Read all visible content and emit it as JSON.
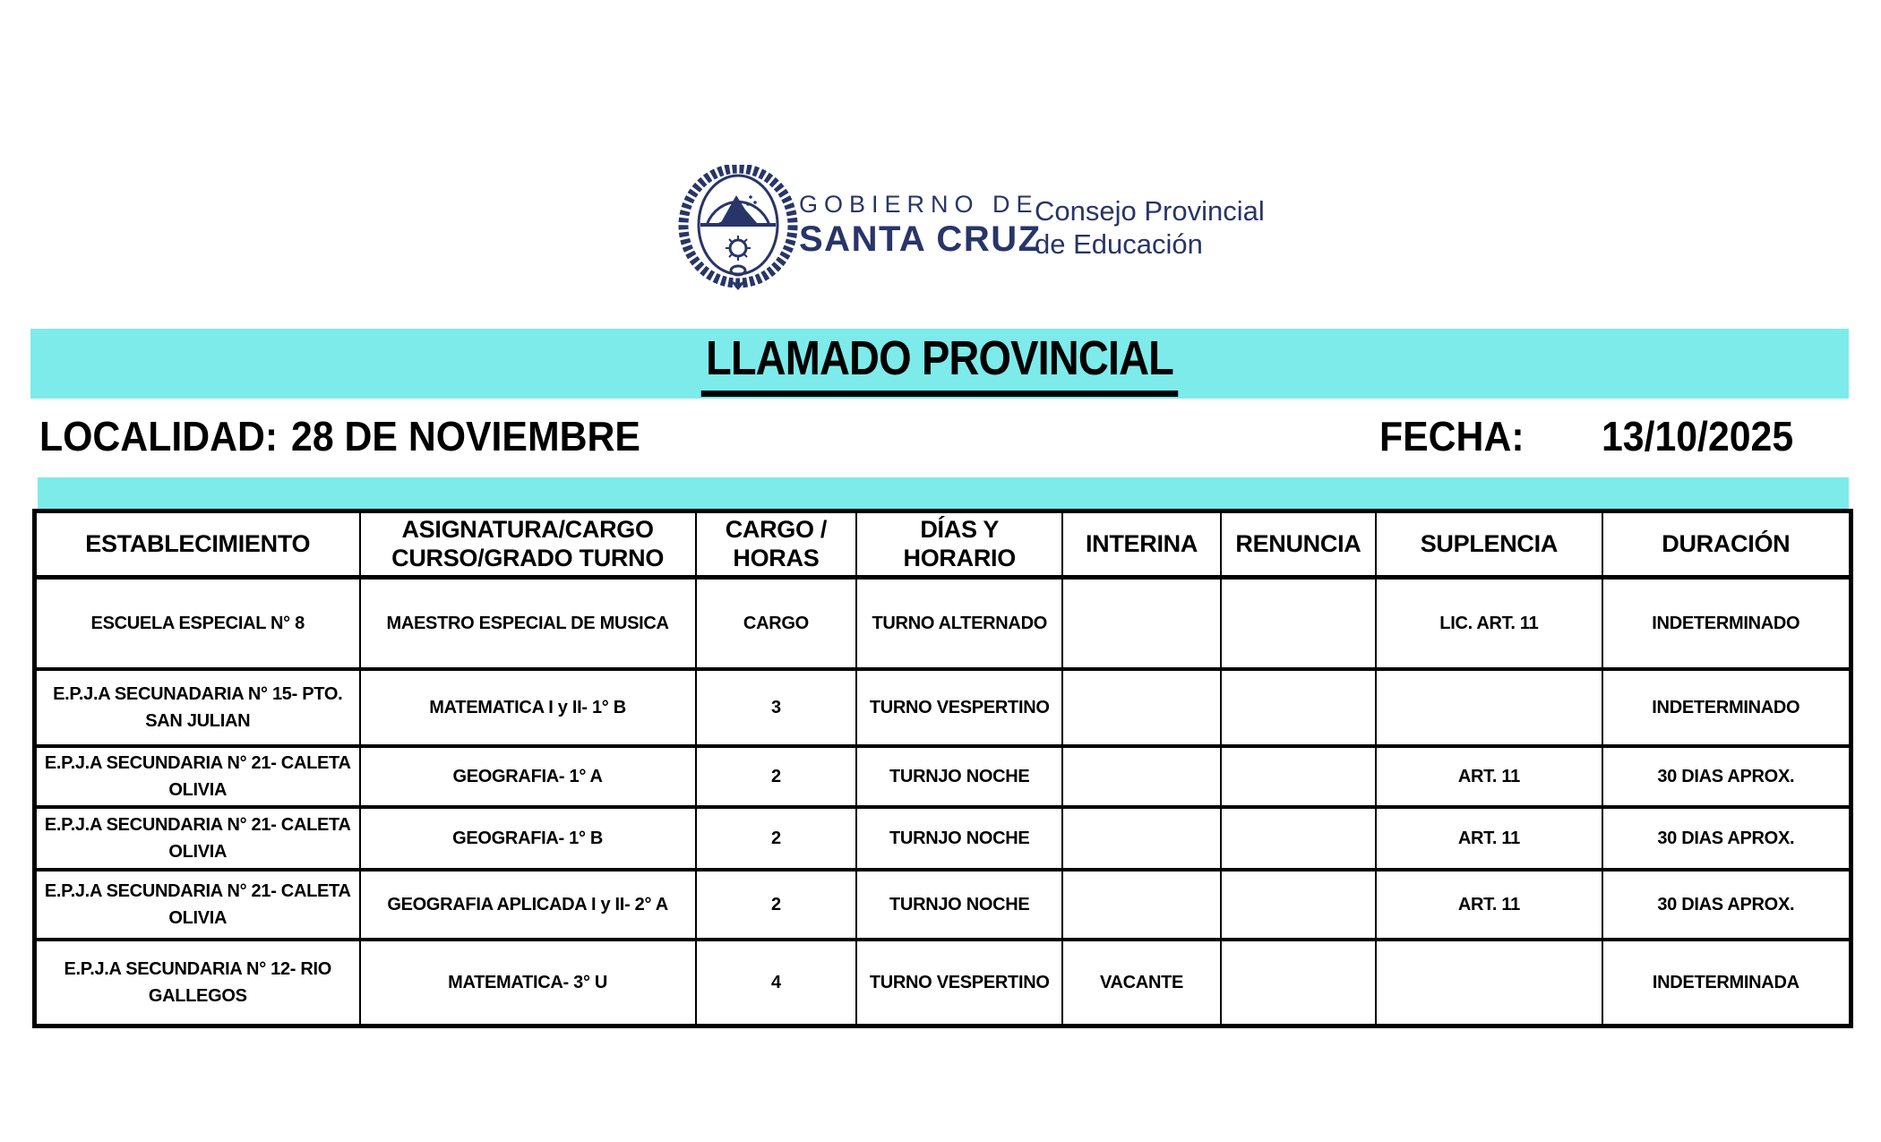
{
  "colors": {
    "accent_cyan": "#7DEBEA",
    "brand_navy": "#283568"
  },
  "header": {
    "logo_icon": "santa-cruz-coat-of-arms",
    "gobierno_line1": "GOBIERNO DE",
    "gobierno_line2": "SANTA CRUZ",
    "consejo_line1": "Consejo Provincial",
    "consejo_line2": "de Educación"
  },
  "banner": {
    "title": "LLAMADO PROVINCIAL"
  },
  "info": {
    "localidad_label": "LOCALIDAD:",
    "localidad_value": "28 DE NOVIEMBRE",
    "fecha_label": "FECHA:",
    "fecha_value": "13/10/2025"
  },
  "table": {
    "columns": [
      "ESTABLECIMIENTO",
      "ASIGNATURA/CARGO\nCURSO/GRADO  TURNO",
      "CARGO /\nHORAS",
      "DÍAS Y HORARIO",
      "INTERINA",
      "RENUNCIA",
      "SUPLENCIA",
      "DURACIÓN"
    ],
    "rows": [
      [
        "ESCUELA ESPECIAL N° 8",
        "MAESTRO ESPECIAL DE MUSICA",
        "CARGO",
        "TURNO ALTERNADO",
        "",
        "",
        "LIC. ART. 11",
        "INDETERMINADO"
      ],
      [
        "E.P.J.A SECUNADARIA N° 15- PTO. SAN JULIAN",
        "MATEMATICA I y II- 1° B",
        "3",
        "TURNO VESPERTINO",
        "",
        "",
        "",
        "INDETERMINADO"
      ],
      [
        "E.P.J.A SECUNDARIA N° 21- CALETA OLIVIA",
        "GEOGRAFIA- 1° A",
        "2",
        "TURNJO NOCHE",
        "",
        "",
        "ART. 11",
        "30 DIAS APROX."
      ],
      [
        "E.P.J.A SECUNDARIA N° 21- CALETA OLIVIA",
        "GEOGRAFIA- 1° B",
        "2",
        "TURNJO NOCHE",
        "",
        "",
        "ART. 11",
        "30 DIAS APROX."
      ],
      [
        "E.P.J.A SECUNDARIA N° 21- CALETA OLIVIA",
        "GEOGRAFIA APLICADA I y II- 2° A",
        "2",
        "TURNJO NOCHE",
        "",
        "",
        "ART. 11",
        "30 DIAS APROX."
      ],
      [
        "E.P.J.A SECUNDARIA N° 12- RIO GALLEGOS",
        "MATEMATICA- 3° U",
        "4",
        "TURNO VESPERTINO",
        "VACANTE",
        "",
        "",
        "INDETERMINADA"
      ]
    ]
  }
}
